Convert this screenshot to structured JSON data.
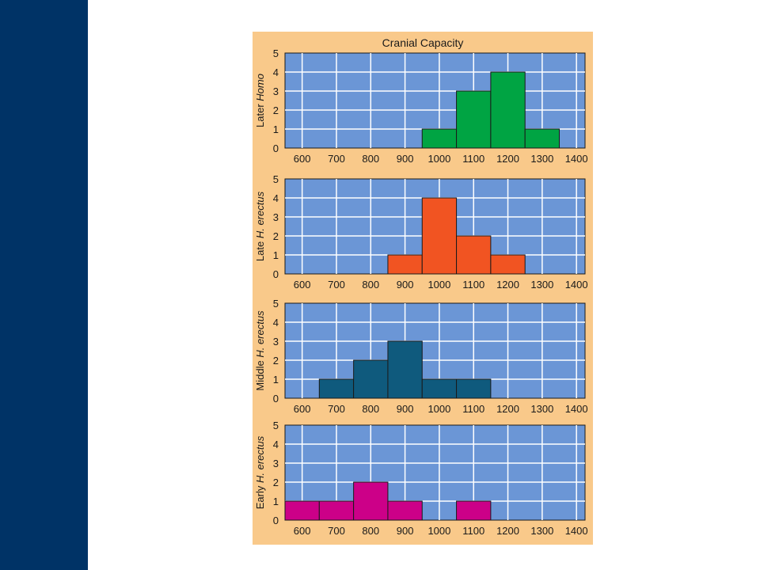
{
  "colors": {
    "sidebar": "#003366",
    "figure_background": "#f9c98a",
    "plot_background": "#6b96d6",
    "grid": "#ffffff"
  },
  "chart_data": {
    "title": "Cranial Capacity",
    "type": "bar",
    "x_ticks": [
      600,
      700,
      800,
      900,
      1000,
      1100,
      1200,
      1300,
      1400
    ],
    "y_ticks": [
      0,
      1,
      2,
      3,
      4,
      5
    ],
    "xlim": [
      550,
      1425
    ],
    "ylim": [
      0,
      5
    ],
    "bin_width": 100,
    "grid": true,
    "panels": [
      {
        "ylabel": "Later",
        "ylabel_italic": "Homo",
        "color": "#00a443",
        "bins": [
          {
            "x": 1000,
            "count": 1
          },
          {
            "x": 1100,
            "count": 3
          },
          {
            "x": 1200,
            "count": 4
          },
          {
            "x": 1300,
            "count": 1
          }
        ]
      },
      {
        "ylabel": "Late",
        "ylabel_italic": "H. erectus",
        "color": "#f15422",
        "bins": [
          {
            "x": 900,
            "count": 1
          },
          {
            "x": 1000,
            "count": 4
          },
          {
            "x": 1100,
            "count": 2
          },
          {
            "x": 1200,
            "count": 1
          }
        ]
      },
      {
        "ylabel": "Middle",
        "ylabel_italic": "H. erectus",
        "color": "#0f5a7d",
        "bins": [
          {
            "x": 700,
            "count": 1
          },
          {
            "x": 800,
            "count": 2
          },
          {
            "x": 900,
            "count": 3
          },
          {
            "x": 1000,
            "count": 1
          },
          {
            "x": 1100,
            "count": 1
          }
        ]
      },
      {
        "ylabel": "Early",
        "ylabel_italic": "H. erectus",
        "color": "#cc0088",
        "bins": [
          {
            "x": 600,
            "count": 1
          },
          {
            "x": 700,
            "count": 1
          },
          {
            "x": 800,
            "count": 2
          },
          {
            "x": 900,
            "count": 1
          },
          {
            "x": 1100,
            "count": 1
          }
        ]
      }
    ]
  }
}
